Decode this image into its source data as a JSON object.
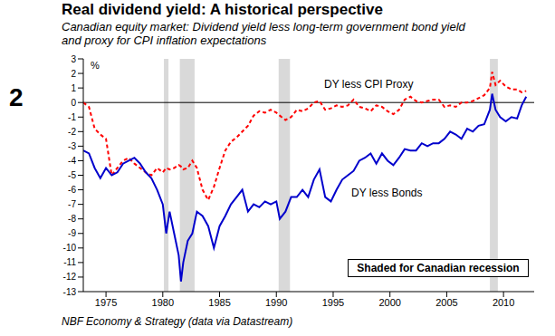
{
  "chart_data": {
    "type": "line",
    "panel_number": "2",
    "title": "Real dividend yield: A historical perspective",
    "subtitle": [
      "Canadian equity market: Dividend yield less long-term government bond yield",
      "and proxy for CPI inflation expectations"
    ],
    "y_label": "%",
    "source": "NBF Economy & Strategy (data via Datastream)",
    "x": [
      1973.0,
      1973.5,
      1974.0,
      1974.5,
      1975.0,
      1975.5,
      1976.0,
      1976.5,
      1977.0,
      1977.5,
      1978.0,
      1978.5,
      1979.0,
      1979.5,
      1980.0,
      1980.3,
      1980.6,
      1981.0,
      1981.4,
      1981.6,
      1981.8,
      1982.2,
      1982.6,
      1983.0,
      1983.5,
      1984.0,
      1984.5,
      1985.0,
      1985.5,
      1986.0,
      1986.5,
      1987.0,
      1987.5,
      1988.0,
      1988.5,
      1989.0,
      1989.5,
      1990.0,
      1990.3,
      1990.8,
      1991.3,
      1991.8,
      1992.3,
      1992.8,
      1993.3,
      1993.8,
      1994.3,
      1994.8,
      1995.3,
      1995.8,
      1996.3,
      1996.8,
      1997.3,
      1997.8,
      1998.3,
      1998.8,
      1999.3,
      1999.8,
      2000.3,
      2000.8,
      2001.3,
      2001.8,
      2002.3,
      2002.8,
      2003.3,
      2003.8,
      2004.3,
      2004.8,
      2005.3,
      2005.8,
      2006.3,
      2006.8,
      2007.3,
      2007.8,
      2008.3,
      2008.8,
      2009.0,
      2009.3,
      2009.7,
      2010.2,
      2010.7,
      2011.2,
      2011.6,
      2012.0
    ],
    "series": [
      {
        "name": "DY less CPI Proxy",
        "color": "#ff0000",
        "line_style": "dashed",
        "values": [
          0.0,
          -0.3,
          -1.8,
          -2.2,
          -2.5,
          -5.0,
          -4.5,
          -4.0,
          -3.8,
          -4.2,
          -4.5,
          -4.8,
          -5.0,
          -4.5,
          -4.8,
          -4.5,
          -4.6,
          -4.5,
          -4.3,
          -4.4,
          -4.6,
          -4.5,
          -4.0,
          -4.5,
          -6.0,
          -6.7,
          -5.8,
          -4.5,
          -3.3,
          -2.7,
          -2.4,
          -2.0,
          -1.6,
          -0.9,
          -0.6,
          -0.7,
          -0.5,
          -0.7,
          -0.9,
          -1.2,
          -1.0,
          -0.5,
          -0.6,
          -0.4,
          0.0,
          0.1,
          -0.5,
          -0.4,
          -0.2,
          -0.3,
          -0.2,
          0.2,
          -0.3,
          -0.4,
          -0.6,
          -0.2,
          -0.3,
          -0.6,
          -0.8,
          -0.5,
          0.2,
          0.4,
          0.1,
          0.0,
          0.1,
          0.2,
          0.2,
          -0.3,
          -0.2,
          -0.3,
          0.0,
          0.0,
          0.1,
          0.3,
          0.5,
          1.0,
          2.1,
          1.2,
          1.5,
          1.1,
          0.9,
          0.9,
          0.7,
          0.8
        ]
      },
      {
        "name": "DY less Bonds",
        "color": "#0000cc",
        "line_style": "solid",
        "values": [
          -3.3,
          -3.5,
          -4.5,
          -5.2,
          -4.5,
          -5.0,
          -4.8,
          -4.2,
          -4.0,
          -3.8,
          -4.2,
          -4.8,
          -5.2,
          -6.0,
          -7.0,
          -9.0,
          -7.5,
          -9.0,
          -10.5,
          -12.3,
          -11.0,
          -9.5,
          -9.0,
          -7.5,
          -7.8,
          -8.5,
          -10.0,
          -8.5,
          -7.8,
          -7.0,
          -6.5,
          -6.0,
          -7.5,
          -7.0,
          -7.2,
          -6.8,
          -7.0,
          -6.8,
          -8.0,
          -7.5,
          -6.5,
          -6.5,
          -6.0,
          -6.5,
          -5.3,
          -4.6,
          -6.5,
          -6.8,
          -6.0,
          -5.3,
          -5.0,
          -4.7,
          -4.0,
          -3.8,
          -3.5,
          -4.2,
          -3.5,
          -4.0,
          -4.3,
          -3.8,
          -3.2,
          -3.3,
          -3.3,
          -2.8,
          -3.0,
          -2.8,
          -2.8,
          -2.5,
          -2.0,
          -2.2,
          -2.5,
          -1.8,
          -2.0,
          -1.6,
          -1.5,
          -0.5,
          0.6,
          -0.5,
          -1.0,
          -1.3,
          -1.0,
          -1.1,
          -0.2,
          0.4
        ]
      }
    ],
    "xlim": [
      1973.0,
      2012.7
    ],
    "xticks": [
      1975,
      1980,
      1985,
      1990,
      1995,
      2000,
      2005,
      2010
    ],
    "ylim": [
      -13,
      3
    ],
    "yticks": [
      -13,
      -12,
      -11,
      -10,
      -9,
      -8,
      -7,
      -6,
      -5,
      -4,
      -3,
      -2,
      -1,
      0,
      1,
      2,
      3
    ],
    "reference_lines": [
      0
    ],
    "recessions": {
      "label": "Shaded for Canadian recession",
      "color": "#d9d9d9",
      "periods": [
        [
          1980.1,
          1980.5
        ],
        [
          1981.5,
          1982.8
        ],
        [
          1990.2,
          1991.2
        ],
        [
          2008.8,
          2009.5
        ]
      ]
    }
  }
}
